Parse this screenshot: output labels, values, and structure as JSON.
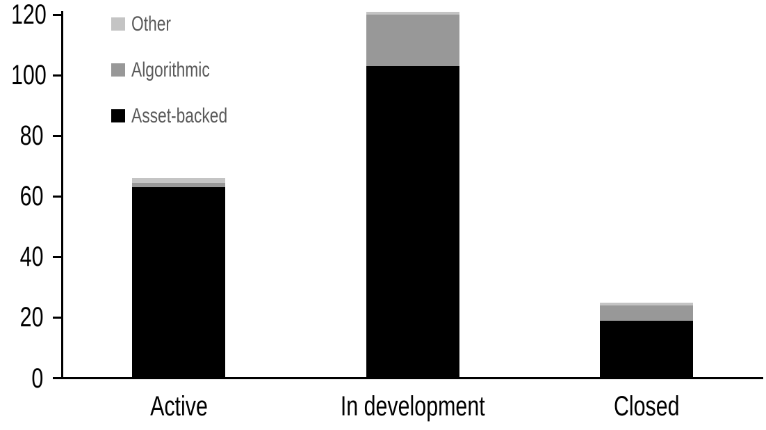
{
  "chart_data": {
    "type": "bar",
    "stacked": true,
    "title": "",
    "xlabel": "",
    "ylabel": "",
    "categories": [
      "Active",
      "In development",
      "Closed"
    ],
    "series": [
      {
        "name": "Asset-backed",
        "color": "#000000",
        "values": [
          63,
          103,
          19
        ]
      },
      {
        "name": "Algorithmic",
        "color": "#989898",
        "values": [
          1.5,
          17,
          5
        ]
      },
      {
        "name": "Other",
        "color": "#c4c4c4",
        "values": [
          1.5,
          1,
          1
        ]
      }
    ],
    "totals": [
      66,
      121,
      25
    ],
    "ylim": [
      0,
      120
    ],
    "yticks": [
      0,
      20,
      40,
      60,
      80,
      100,
      120
    ],
    "grid": "off",
    "legend_position": "top-left",
    "legend_order": [
      "Other",
      "Algorithmic",
      "Asset-backed"
    ],
    "note": "In-development bar is clipped at the top of the plot area (total exceeds axis max)",
    "colors": {
      "axis": "#000000",
      "tick_label": "#000000",
      "category_label": "#000000",
      "legend_text": "#595959",
      "background": "#ffffff"
    }
  }
}
